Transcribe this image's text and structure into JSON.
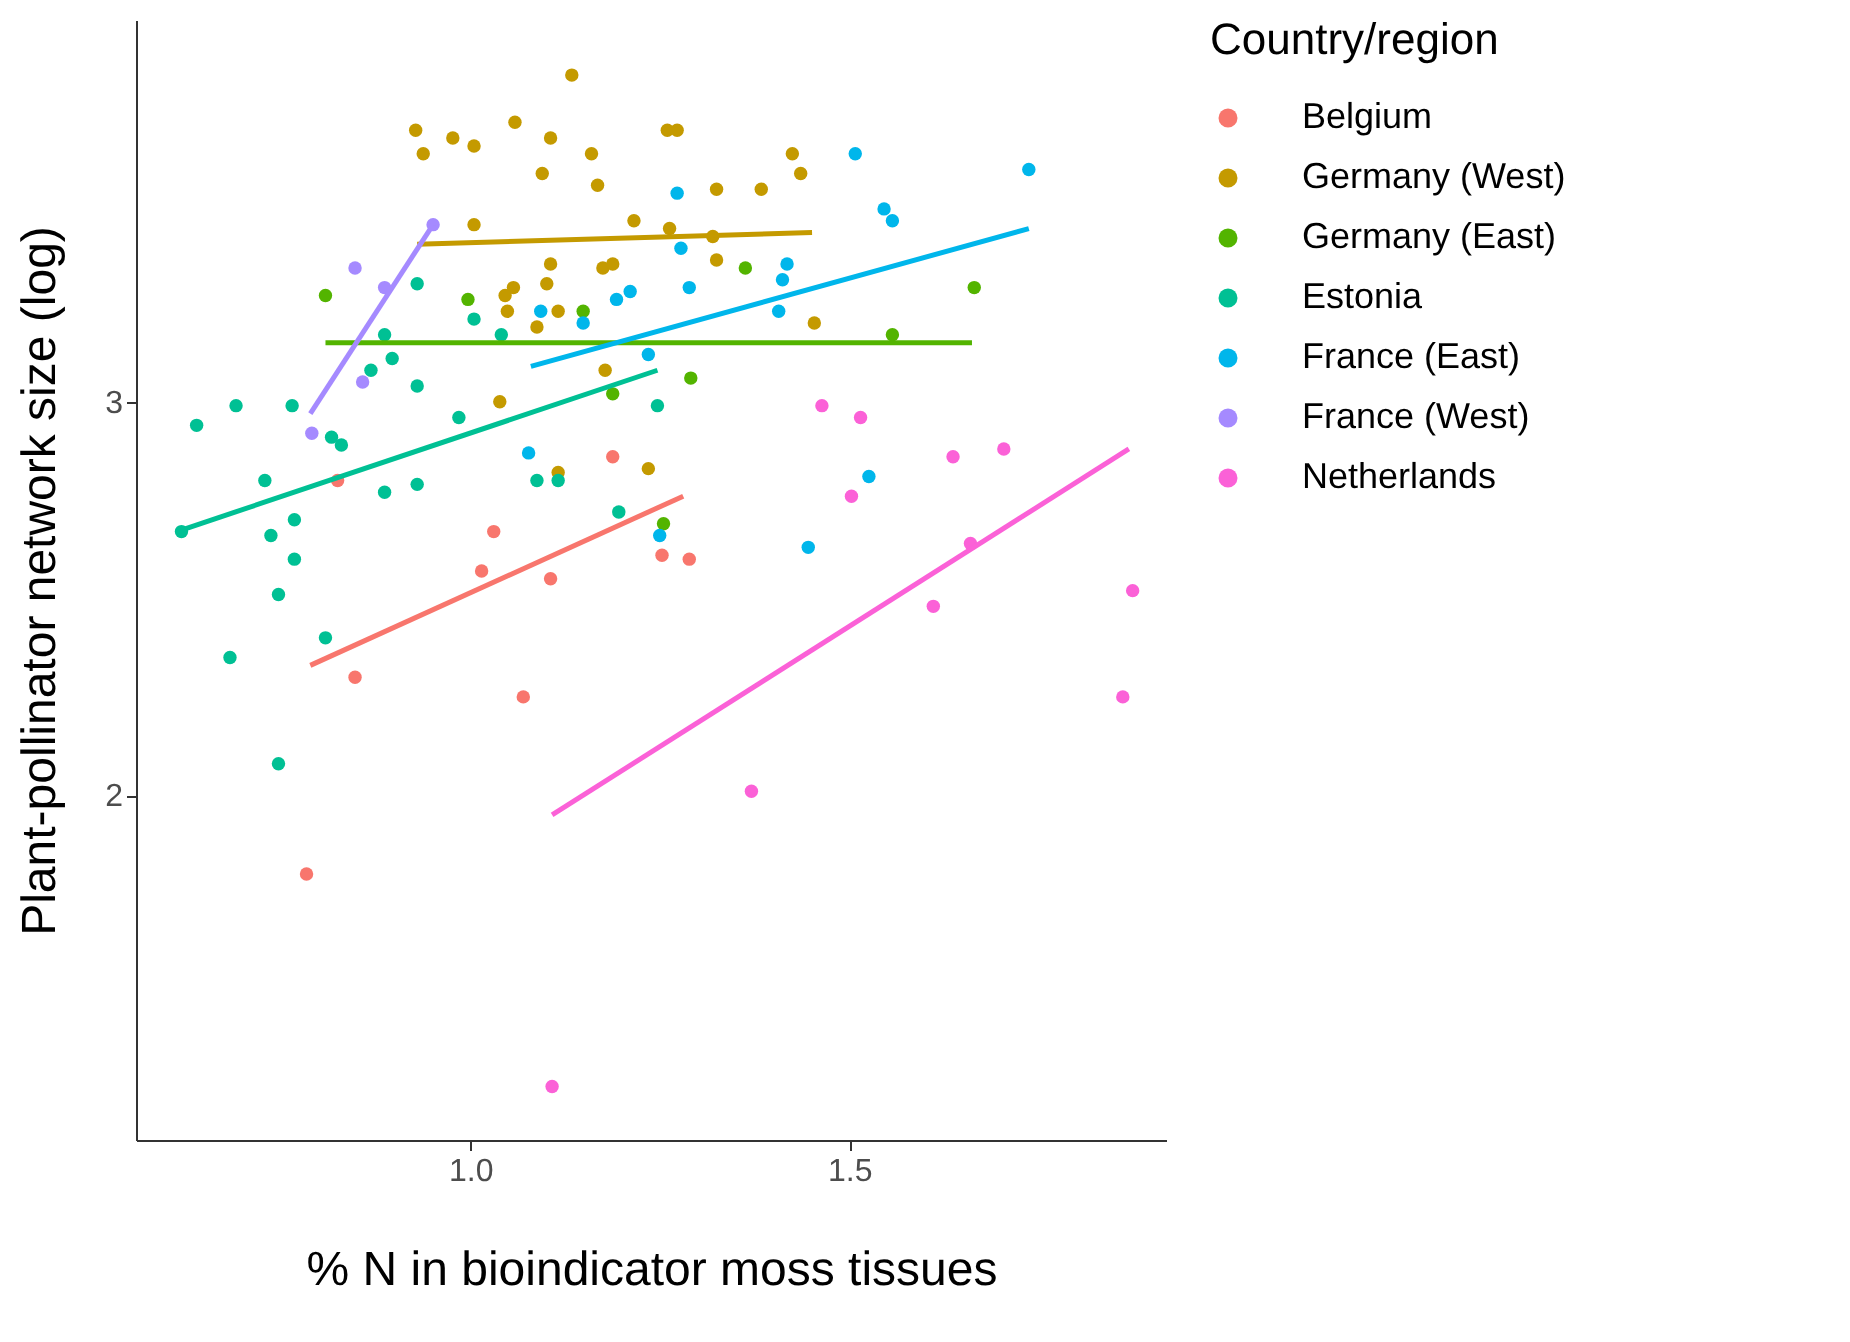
{
  "chart_data": {
    "type": "scatter",
    "xlabel": "% N in bioindicator moss tissues",
    "ylabel": "Plant-pollinator network size (log)",
    "legend_title": "Country/region",
    "legend": "right",
    "marker": "circle",
    "xlim": [
      0.559,
      1.918
    ],
    "ylim": [
      1.124,
      3.97
    ],
    "xticks": [
      {
        "value": 1,
        "label": "1.0"
      },
      {
        "value": 1.5,
        "label": "1.5"
      }
    ],
    "yticks": [
      2,
      3
    ],
    "series": [
      {
        "name": "Belgium",
        "color": "#f8766d",
        "x": [
          0.825,
          1.031,
          1.015,
          1.106,
          0.848,
          1.07,
          1.188,
          1.253,
          1.289,
          0.784
        ],
        "values": [
          2.8,
          2.67,
          2.57,
          2.55,
          2.3,
          2.25,
          2.86,
          2.61,
          2.6,
          1.8
        ]
      },
      {
        "name": "Germany (West)",
        "color": "#c49a00",
        "x": [
          0.928,
          0.938,
          0.977,
          1.005,
          1.059,
          1.106,
          1.134,
          1.16,
          1.095,
          1.168,
          1.005,
          1.216,
          1.106,
          1.175,
          1.188,
          1.057,
          1.046,
          1.101,
          1.049,
          1.116,
          1.088,
          1.178,
          1.039,
          1.26,
          1.273,
          1.425,
          1.436,
          1.325,
          1.384,
          1.263,
          1.32,
          1.325,
          1.454,
          1.116,
          1.235
        ],
        "values": [
          3.69,
          3.63,
          3.67,
          3.65,
          3.71,
          3.67,
          3.83,
          3.63,
          3.58,
          3.55,
          3.45,
          3.46,
          3.35,
          3.34,
          3.35,
          3.29,
          3.27,
          3.3,
          3.23,
          3.23,
          3.19,
          3.08,
          3.0,
          3.69,
          3.69,
          3.63,
          3.58,
          3.54,
          3.54,
          3.44,
          3.42,
          3.36,
          3.2,
          2.82,
          2.83
        ]
      },
      {
        "name": "Germany (East)",
        "color": "#53b400",
        "x": [
          0.809,
          0.997,
          1.149,
          1.188,
          1.363,
          1.557,
          1.665,
          1.291,
          1.255
        ],
        "values": [
          3.27,
          3.26,
          3.23,
          3.02,
          3.34,
          3.17,
          3.29,
          3.06,
          2.69
        ]
      },
      {
        "name": "Estonia",
        "color": "#00c094",
        "x": [
          0.93,
          0.887,
          0.897,
          0.869,
          0.93,
          1.005,
          1.041,
          0.691,
          0.765,
          0.639,
          0.985,
          1.247,
          0.817,
          0.83,
          0.729,
          0.887,
          0.93,
          1.088,
          1.116,
          0.619,
          0.737,
          0.768,
          0.768,
          0.747,
          0.809,
          0.683,
          0.747,
          1.196
        ],
        "values": [
          3.3,
          3.17,
          3.11,
          3.08,
          3.04,
          3.21,
          3.17,
          2.99,
          2.99,
          2.94,
          2.96,
          2.99,
          2.91,
          2.89,
          2.8,
          2.77,
          2.79,
          2.8,
          2.8,
          2.67,
          2.66,
          2.7,
          2.6,
          2.51,
          2.4,
          2.35,
          2.08,
          2.72
        ]
      },
      {
        "name": "France (East)",
        "color": "#00b6eb",
        "x": [
          1.093,
          1.149,
          1.193,
          1.211,
          1.235,
          1.508,
          1.737,
          1.273,
          1.546,
          1.557,
          1.278,
          1.289,
          1.418,
          1.412,
          1.407,
          1.077,
          1.25,
          1.526,
          1.446
        ],
        "values": [
          3.23,
          3.2,
          3.26,
          3.28,
          3.12,
          3.63,
          3.59,
          3.53,
          3.49,
          3.46,
          3.39,
          3.29,
          3.35,
          3.31,
          3.23,
          2.87,
          2.66,
          2.81,
          2.63
        ]
      },
      {
        "name": "France (West)",
        "color": "#a58aff",
        "x": [
          0.951,
          0.848,
          0.887,
          0.858,
          0.791
        ],
        "values": [
          3.45,
          3.34,
          3.29,
          3.05,
          2.92
        ]
      },
      {
        "name": "Netherlands",
        "color": "#fb61d7",
        "x": [
          1.464,
          1.515,
          1.637,
          1.704,
          1.503,
          1.66,
          1.611,
          1.874,
          1.861,
          1.371,
          1.108
        ],
        "values": [
          2.99,
          2.96,
          2.86,
          2.88,
          2.76,
          2.64,
          2.48,
          2.52,
          2.25,
          2.01,
          1.26
        ]
      },
      {
        "type": "line",
        "marker": "none",
        "color": "#f8766d",
        "x": [
          0.789,
          1.281
        ],
        "values": [
          2.33,
          2.76
        ]
      },
      {
        "type": "line",
        "marker": "none",
        "color": "#c49a00",
        "x": [
          0.93,
          1.451
        ],
        "values": [
          3.4,
          3.43
        ]
      },
      {
        "type": "line",
        "marker": "none",
        "color": "#53b400",
        "x": [
          0.809,
          1.662
        ],
        "values": [
          3.15,
          3.15
        ]
      },
      {
        "type": "line",
        "marker": "none",
        "color": "#00c094",
        "x": [
          0.613,
          1.247
        ],
        "values": [
          2.67,
          3.08
        ]
      },
      {
        "type": "line",
        "marker": "none",
        "color": "#00b6eb",
        "x": [
          1.08,
          1.737
        ],
        "values": [
          3.09,
          3.44
        ]
      },
      {
        "type": "line",
        "marker": "none",
        "color": "#a58aff",
        "x": [
          0.789,
          0.951
        ],
        "values": [
          2.97,
          3.45
        ]
      },
      {
        "type": "line",
        "marker": "none",
        "color": "#fb61d7",
        "x": [
          1.108,
          1.869
        ],
        "values": [
          1.95,
          2.88
        ]
      }
    ]
  }
}
